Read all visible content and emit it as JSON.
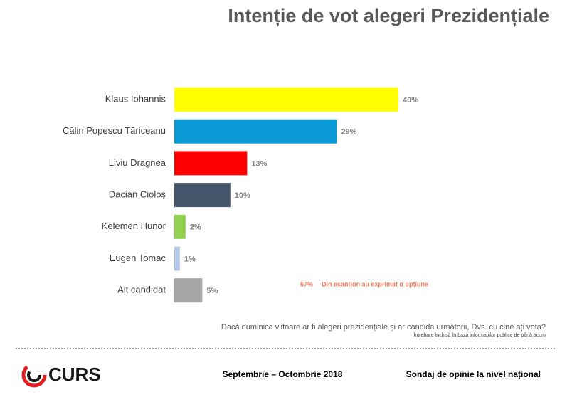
{
  "chart_data": {
    "type": "bar",
    "orientation": "horizontal",
    "title": "Intenție de vot alegeri Prezidențiale",
    "categories": [
      "Klaus Iohannis",
      "Călin Popescu Tăriceanu",
      "Liviu Dragnea",
      "Dacian Cioloș",
      "Kelemen Hunor",
      "Eugen Tomac",
      "Alt candidat"
    ],
    "values": [
      40,
      29,
      13,
      10,
      2,
      1,
      5
    ],
    "value_labels": [
      "40%",
      "29%",
      "13%",
      "10%",
      "2%",
      "1%",
      "5%"
    ],
    "colors": [
      "#ffff00",
      "#0a9ad6",
      "#ff0000",
      "#44546a",
      "#92d050",
      "#b4c7e7",
      "#a6a6a6"
    ],
    "annotations": [
      "67%",
      "Din eșantion au exprimat o opțiune"
    ],
    "footnote": "Dacă duminica viitoare ar fi alegeri prezidențiale și ar candida următorii, Dvs. cu cine ați vota?",
    "note": "Întrebare închisă în baza informațiilor publice de până acum"
  },
  "footer": {
    "logo": "CURS",
    "date": "Septembrie – Octombrie 2018",
    "label": "Sondaj de opinie la nivel național"
  }
}
